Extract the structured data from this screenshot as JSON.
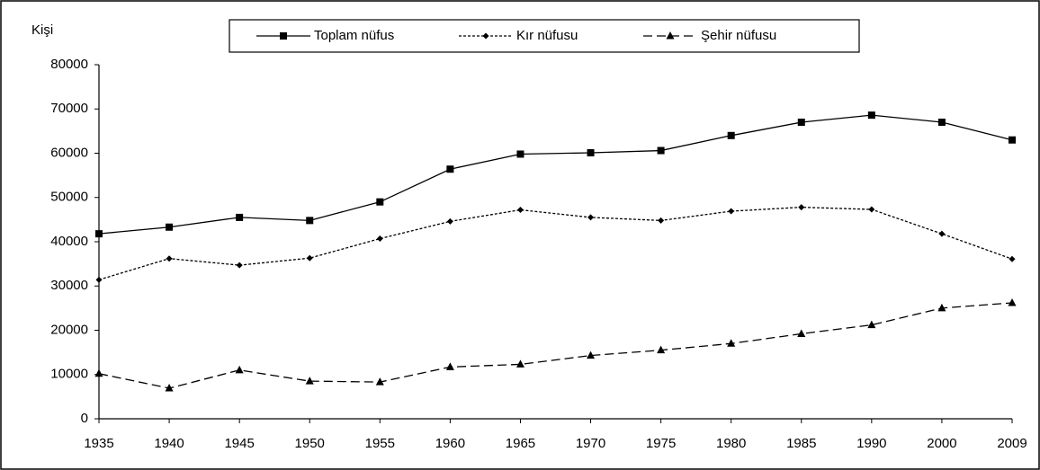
{
  "chart_data": {
    "type": "line",
    "y_label": "Kişi",
    "categories": [
      "1935",
      "1940",
      "1945",
      "1950",
      "1955",
      "1960",
      "1965",
      "1970",
      "1975",
      "1980",
      "1985",
      "1990",
      "2000",
      "2009"
    ],
    "series": [
      {
        "name": "Toplam nüfus",
        "color": "#000000",
        "line_style": "solid",
        "marker": "square",
        "values": [
          41800,
          43300,
          45500,
          44800,
          49000,
          56400,
          59800,
          60100,
          60600,
          64000,
          67000,
          68600,
          67000,
          63000
        ]
      },
      {
        "name": "Kır nüfusu",
        "color": "#000000",
        "line_style": "dotted",
        "marker": "diamond",
        "values": [
          31400,
          36200,
          34700,
          36300,
          40700,
          44600,
          47200,
          45500,
          44800,
          46900,
          47800,
          47300,
          41800,
          36100
        ]
      },
      {
        "name": "Şehir nüfusu",
        "color": "#000000",
        "line_style": "dashed",
        "marker": "triangle",
        "values": [
          10200,
          6900,
          11000,
          8500,
          8300,
          11700,
          12300,
          14300,
          15500,
          17000,
          19200,
          21200,
          25000,
          26200
        ]
      }
    ],
    "ylim": [
      0,
      80000
    ],
    "yticks": [
      0,
      10000,
      20000,
      30000,
      40000,
      50000,
      60000,
      70000,
      80000
    ],
    "legend": "top",
    "grid": false
  }
}
